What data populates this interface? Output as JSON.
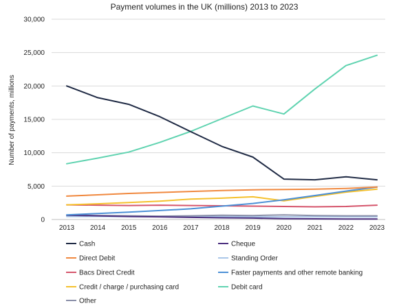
{
  "chart_data": {
    "type": "line",
    "title": "Payment volumes in the UK (millions) 2013 to 2023",
    "ylabel": "Number of payments, millions",
    "xlabel": "",
    "x": [
      "2013",
      "2014",
      "2015",
      "2016",
      "2017",
      "2018",
      "2019",
      "2020",
      "2021",
      "2022",
      "2023"
    ],
    "ylim": [
      0,
      30000
    ],
    "yticks": [
      0,
      5000,
      10000,
      15000,
      20000,
      25000,
      30000
    ],
    "ytick_labels": [
      "0",
      "5,000",
      "10,000",
      "15,000",
      "20,000",
      "25,000",
      "30,000"
    ],
    "grid": true,
    "legend_placement": "bottom",
    "series": [
      {
        "name": "Cash",
        "color": "#1f2a44",
        "values": [
          20000,
          18250,
          17250,
          15400,
          13150,
          10950,
          9350,
          6050,
          5950,
          6400,
          5950
        ]
      },
      {
        "name": "Cheque",
        "color": "#4b2f7f",
        "values": [
          650,
          550,
          450,
          400,
          320,
          260,
          220,
          120,
          100,
          80,
          70
        ]
      },
      {
        "name": "Direct Debit",
        "color": "#f0883e",
        "values": [
          3500,
          3700,
          3900,
          4050,
          4200,
          4350,
          4450,
          4500,
          4550,
          4650,
          4850
        ]
      },
      {
        "name": "Standing Order",
        "color": "#a9c6e8",
        "values": [
          450,
          450,
          430,
          420,
          420,
          420,
          400,
          400,
          400,
          400,
          400
        ]
      },
      {
        "name": "Bacs Direct Credit",
        "color": "#d5546b",
        "values": [
          2200,
          2150,
          2100,
          2150,
          2100,
          2050,
          2000,
          1950,
          1900,
          1950,
          2150
        ]
      },
      {
        "name": "Faster payments and other remote banking",
        "color": "#4a8fd6",
        "values": [
          700,
          900,
          1100,
          1350,
          1600,
          2000,
          2400,
          2950,
          3600,
          4250,
          4850
        ]
      },
      {
        "name": "Credit / charge / purchasing card",
        "color": "#f5c02b",
        "values": [
          2200,
          2350,
          2550,
          2750,
          3050,
          3200,
          3400,
          2800,
          3450,
          4100,
          4550
        ]
      },
      {
        "name": "Debit card",
        "color": "#5fd3b0",
        "values": [
          8350,
          9200,
          10100,
          11550,
          13200,
          15100,
          17000,
          15800,
          19550,
          23050,
          24600
        ]
      },
      {
        "name": "Other",
        "color": "#8a8fa8",
        "values": [
          650,
          600,
          550,
          500,
          550,
          650,
          600,
          700,
          600,
          550,
          550
        ]
      }
    ]
  }
}
